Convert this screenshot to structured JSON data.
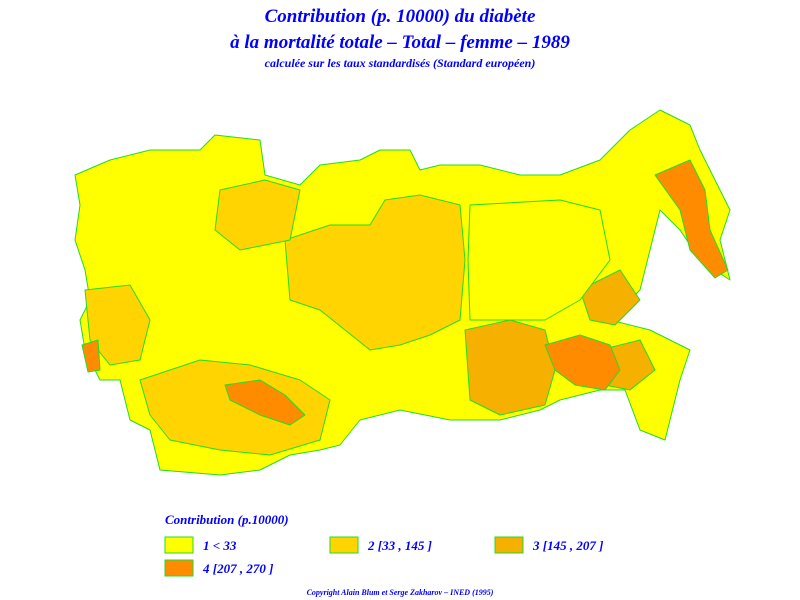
{
  "header": {
    "title_lines": [
      "Contribution (p. 10000) du diabète",
      "à la mortalité totale  –  Total  –  femme  –  1989"
    ],
    "subtitle": "calculée sur les taux standardisés (Standard européen)"
  },
  "legend": {
    "title": "Contribution (p.10000)",
    "items": [
      {
        "label": "1  <  33",
        "color": "#ffff00"
      },
      {
        "label": "2  [33  ,  145  ]",
        "color": "#ffd400"
      },
      {
        "label": "3  [145  ,  207  ]",
        "color": "#f5b000"
      },
      {
        "label": "4  [207  ,  270  ]",
        "color": "#ff8c00"
      }
    ]
  },
  "footer": "Copyright Alain Blum et Serge Zakharov  –  INED (1995)"
}
